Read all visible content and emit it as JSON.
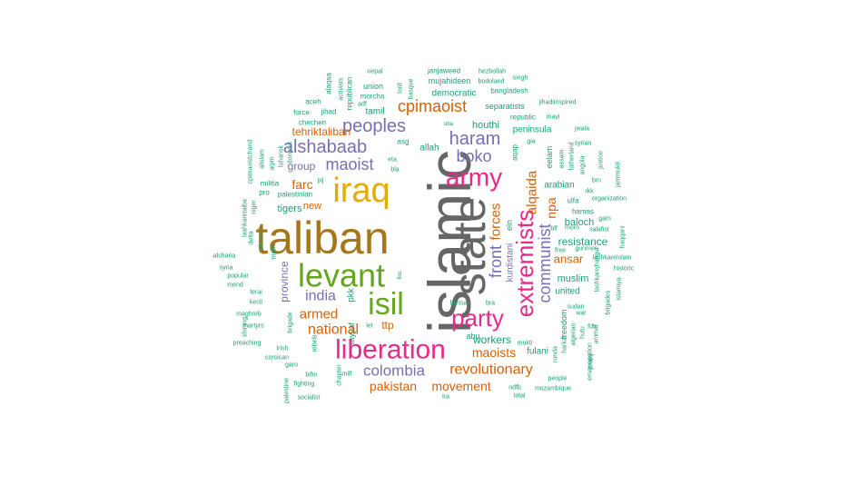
{
  "palette": {
    "green": "#1b9e77",
    "orange": "#d95f02",
    "purple": "#7570b3",
    "pink": "#e7298a",
    "lime": "#66a61e",
    "gold": "#e6ab02",
    "brown": "#a6761d",
    "gray": "#666666"
  },
  "words": [
    {
      "text": "islamic",
      "color": "gray"
    },
    {
      "text": "taliban",
      "color": "brown"
    },
    {
      "text": "state",
      "color": "gray"
    },
    {
      "text": "iraq",
      "color": "gold"
    },
    {
      "text": "levant",
      "color": "lime"
    },
    {
      "text": "isil",
      "color": "lime"
    },
    {
      "text": "liberation",
      "color": "pink"
    },
    {
      "text": "army",
      "color": "pink"
    },
    {
      "text": "party",
      "color": "pink"
    },
    {
      "text": "extremists",
      "color": "pink"
    },
    {
      "text": "alshabaab",
      "color": "purple"
    },
    {
      "text": "peoples",
      "color": "purple"
    },
    {
      "text": "haram",
      "color": "purple"
    },
    {
      "text": "boko",
      "color": "purple"
    },
    {
      "text": "maoist",
      "color": "purple"
    },
    {
      "text": "cpimaoist",
      "color": "orange"
    },
    {
      "text": "communist",
      "color": "purple"
    },
    {
      "text": "front",
      "color": "purple"
    },
    {
      "text": "forces",
      "color": "orange"
    },
    {
      "text": "alqaida",
      "color": "orange"
    },
    {
      "text": "colombia",
      "color": "purple"
    },
    {
      "text": "revolutionary",
      "color": "orange"
    },
    {
      "text": "national",
      "color": "orange"
    },
    {
      "text": "india",
      "color": "purple"
    },
    {
      "text": "armed",
      "color": "orange"
    },
    {
      "text": "pakistan",
      "color": "orange"
    },
    {
      "text": "movement",
      "color": "orange"
    },
    {
      "text": "maoists",
      "color": "orange"
    },
    {
      "text": "tehriktaliban",
      "color": "orange"
    },
    {
      "text": "npa",
      "color": "orange"
    },
    {
      "text": "ansar",
      "color": "orange"
    },
    {
      "text": "farc",
      "color": "orange"
    },
    {
      "text": "group",
      "color": "purple"
    },
    {
      "text": "resistance",
      "color": "green"
    },
    {
      "text": "province",
      "color": "purple"
    },
    {
      "text": "workers",
      "color": "green"
    },
    {
      "text": "ttp",
      "color": "orange"
    },
    {
      "text": "kurdistani",
      "color": "purple"
    },
    {
      "text": "baloch",
      "color": "green"
    },
    {
      "text": "muslim",
      "color": "green"
    },
    {
      "text": "houthi",
      "color": "green"
    },
    {
      "text": "new",
      "color": "orange"
    },
    {
      "text": "tigers",
      "color": "green"
    },
    {
      "text": "allah",
      "color": "green"
    },
    {
      "text": "peninsula",
      "color": "green"
    },
    {
      "text": "arabian",
      "color": "green"
    },
    {
      "text": "united",
      "color": "green"
    },
    {
      "text": "fulani",
      "color": "green"
    },
    {
      "text": "democratic",
      "color": "green"
    },
    {
      "text": "separatists",
      "color": "green"
    },
    {
      "text": "tamil",
      "color": "green"
    },
    {
      "text": "mujahideen",
      "color": "green"
    },
    {
      "text": "bangladesh",
      "color": "green"
    },
    {
      "text": "republican",
      "color": "green"
    },
    {
      "text": "pkk",
      "color": "green"
    },
    {
      "text": "sayyaf",
      "color": "green"
    },
    {
      "text": "abu",
      "color": "green"
    },
    {
      "text": "eln",
      "color": "green"
    },
    {
      "text": "pro",
      "color": "green"
    },
    {
      "text": "palestinian",
      "color": "green"
    },
    {
      "text": "militia",
      "color": "green"
    },
    {
      "text": "janjaweed",
      "color": "green"
    },
    {
      "text": "hezbollah",
      "color": "green"
    },
    {
      "text": "bodoland",
      "color": "green"
    },
    {
      "text": "singh",
      "color": "green"
    },
    {
      "text": "nepal",
      "color": "green"
    },
    {
      "text": "union",
      "color": "green"
    },
    {
      "text": "morcha",
      "color": "green"
    },
    {
      "text": "adf",
      "color": "green"
    },
    {
      "text": "activists",
      "color": "green"
    },
    {
      "text": "alaqsa",
      "color": "green"
    },
    {
      "text": "aceh",
      "color": "green"
    },
    {
      "text": "force",
      "color": "green"
    },
    {
      "text": "jihad",
      "color": "green"
    },
    {
      "text": "chechen",
      "color": "green"
    },
    {
      "text": "asg",
      "color": "green"
    },
    {
      "text": "eta",
      "color": "green"
    },
    {
      "text": "bla",
      "color": "green"
    },
    {
      "text": "pij",
      "color": "green"
    },
    {
      "text": "uba",
      "color": "green"
    },
    {
      "text": "republic",
      "color": "green"
    },
    {
      "text": "mayi",
      "color": "green"
    },
    {
      "text": "jihadiinspired",
      "color": "green"
    },
    {
      "text": "gia",
      "color": "green"
    },
    {
      "text": "jwala",
      "color": "green"
    },
    {
      "text": "syrian",
      "color": "green"
    },
    {
      "text": "justice",
      "color": "green"
    },
    {
      "text": "eelam",
      "color": "green"
    },
    {
      "text": "assam",
      "color": "green"
    },
    {
      "text": "fatherland",
      "color": "green"
    },
    {
      "text": "angola",
      "color": "green"
    },
    {
      "text": "ulfa",
      "color": "green"
    },
    {
      "text": "hamas",
      "color": "green"
    },
    {
      "text": "organization",
      "color": "green"
    },
    {
      "text": "rkk",
      "color": "green"
    },
    {
      "text": "brn",
      "color": "green"
    },
    {
      "text": "jammukti",
      "color": "green"
    },
    {
      "text": "gam",
      "color": "green"
    },
    {
      "text": "salafist",
      "color": "green"
    },
    {
      "text": "moro",
      "color": "green"
    },
    {
      "text": "blf",
      "color": "green"
    },
    {
      "text": "free",
      "color": "green"
    },
    {
      "text": "gunmen",
      "color": "green"
    },
    {
      "text": "haqqani",
      "color": "green"
    },
    {
      "text": "lashkareislam",
      "color": "green"
    },
    {
      "text": "historic",
      "color": "green"
    },
    {
      "text": "lashkarejhangvi",
      "color": "green"
    },
    {
      "text": "islamiya",
      "color": "green"
    },
    {
      "text": "brigades",
      "color": "green"
    },
    {
      "text": "freedom",
      "color": "green"
    },
    {
      "text": "sudan",
      "color": "green"
    },
    {
      "text": "war",
      "color": "green"
    },
    {
      "text": "algerian",
      "color": "green"
    },
    {
      "text": "harkat",
      "color": "green"
    },
    {
      "text": "hutu",
      "color": "green"
    },
    {
      "text": "animal",
      "color": "green"
    },
    {
      "text": "fdlr",
      "color": "green"
    },
    {
      "text": "jtmmj",
      "color": "green"
    },
    {
      "text": "emancipation",
      "color": "green"
    },
    {
      "text": "people",
      "color": "green"
    },
    {
      "text": "mozambique",
      "color": "green"
    },
    {
      "text": "runda",
      "color": "green"
    },
    {
      "text": "mukti",
      "color": "green"
    },
    {
      "text": "ndfb",
      "color": "green"
    },
    {
      "text": "total",
      "color": "green"
    },
    {
      "text": "bra",
      "color": "green"
    },
    {
      "text": "barisan",
      "color": "green"
    },
    {
      "text": "aqap",
      "color": "green"
    },
    {
      "text": "cpimaoistchand",
      "color": "green"
    },
    {
      "text": "alislam",
      "color": "green"
    },
    {
      "text": "aqim",
      "color": "green"
    },
    {
      "text": "luhansk",
      "color": "green"
    },
    {
      "text": "donetsk",
      "color": "green"
    },
    {
      "text": "niger",
      "color": "green"
    },
    {
      "text": "delta",
      "color": "green"
    },
    {
      "text": "alnusrah",
      "color": "green"
    },
    {
      "text": "lashkaretaiba",
      "color": "green"
    },
    {
      "text": "alsharia",
      "color": "green"
    },
    {
      "text": "syria",
      "color": "green"
    },
    {
      "text": "popular",
      "color": "green"
    },
    {
      "text": "mend",
      "color": "green"
    },
    {
      "text": "tripoli",
      "color": "green"
    },
    {
      "text": "terai",
      "color": "green"
    },
    {
      "text": "kecil",
      "color": "green"
    },
    {
      "text": "maghreb",
      "color": "green"
    },
    {
      "text": "shining",
      "color": "green"
    },
    {
      "text": "brigade",
      "color": "green"
    },
    {
      "text": "martyrs",
      "color": "green"
    },
    {
      "text": "preaching",
      "color": "green"
    },
    {
      "text": "irish",
      "color": "green"
    },
    {
      "text": "rebels",
      "color": "green"
    },
    {
      "text": "corsican",
      "color": "green"
    },
    {
      "text": "garo",
      "color": "green"
    },
    {
      "text": "bifm",
      "color": "green"
    },
    {
      "text": "chapter",
      "color": "green"
    },
    {
      "text": "milf",
      "color": "green"
    },
    {
      "text": "fighting",
      "color": "green"
    },
    {
      "text": "palestine",
      "color": "green"
    },
    {
      "text": "socialist",
      "color": "green"
    },
    {
      "text": "flnc",
      "color": "green"
    },
    {
      "text": "lra",
      "color": "green"
    },
    {
      "text": "let",
      "color": "green"
    },
    {
      "text": "lord",
      "color": "green"
    },
    {
      "text": "basque",
      "color": "green"
    }
  ]
}
